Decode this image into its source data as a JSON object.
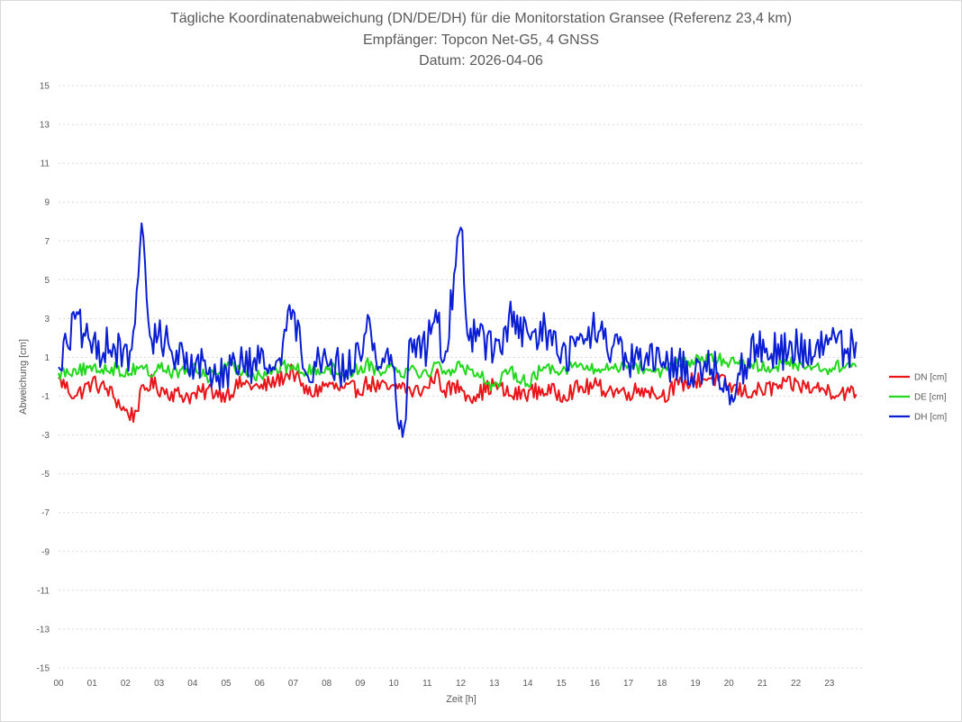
{
  "chart_data": {
    "type": "line",
    "title": "Tägliche Koordinatenabweichung (DN/DE/DH) für die Monitorstation Gransee (Referenz 23,4 km)",
    "subtitle": "Empfänger: Topcon Net-G5, 4 GNSS",
    "date_line": "Datum: 2026-04-06",
    "xlabel": "Zeit [h]",
    "ylabel": "Abweichung [cm]",
    "xlim": [
      0,
      24
    ],
    "ylim": [
      -15,
      15
    ],
    "xticks": [
      "00",
      "01",
      "02",
      "03",
      "04",
      "05",
      "06",
      "07",
      "08",
      "09",
      "10",
      "11",
      "12",
      "13",
      "14",
      "15",
      "16",
      "17",
      "18",
      "19",
      "20",
      "21",
      "22",
      "23"
    ],
    "yticks": [
      15,
      13,
      11,
      9,
      7,
      5,
      3,
      1,
      -1,
      -3,
      -5,
      -7,
      -9,
      -11,
      -13,
      -15
    ],
    "grid": "horizontal-dotted",
    "legend_position": "right",
    "x": [
      0.0,
      0.5,
      1.0,
      1.5,
      2.0,
      2.25,
      2.5,
      2.75,
      3.0,
      3.5,
      4.0,
      4.5,
      5.0,
      5.5,
      6.0,
      6.5,
      7.0,
      7.25,
      7.5,
      8.0,
      8.5,
      9.0,
      9.25,
      9.5,
      10.0,
      10.25,
      10.5,
      11.0,
      11.25,
      11.5,
      12.0,
      12.25,
      12.5,
      13.0,
      13.5,
      14.0,
      14.5,
      15.0,
      15.5,
      16.0,
      16.5,
      17.0,
      17.5,
      18.0,
      18.5,
      19.0,
      19.5,
      20.0,
      20.5,
      21.0,
      21.5,
      22.0,
      22.5,
      23.0,
      23.5,
      23.8
    ],
    "series": [
      {
        "name": "DN [cm]",
        "color": "#e8161a",
        "values": [
          -0.1,
          -1.0,
          -0.3,
          -0.7,
          -1.8,
          -2.0,
          -0.8,
          -0.3,
          -0.6,
          -0.9,
          -1.0,
          -0.7,
          -0.9,
          -0.3,
          -0.6,
          -0.2,
          0.3,
          -0.5,
          -0.9,
          -0.4,
          -0.7,
          -0.6,
          -0.3,
          -0.5,
          -0.7,
          -0.4,
          -0.8,
          -0.6,
          0.2,
          -0.7,
          -0.5,
          -1.0,
          -0.9,
          -0.4,
          -1.0,
          -0.8,
          -0.7,
          -0.9,
          -0.6,
          -0.5,
          -0.7,
          -0.8,
          -0.6,
          -1.0,
          -0.4,
          -0.2,
          0.0,
          -0.5,
          -0.8,
          -0.7,
          -0.5,
          -0.4,
          -0.6,
          -0.7,
          -0.8,
          -0.9
        ]
      },
      {
        "name": "DE [cm]",
        "color": "#22d81c",
        "values": [
          0.2,
          0.4,
          0.3,
          0.5,
          0.2,
          0.4,
          0.6,
          0.1,
          0.5,
          0.2,
          0.4,
          0.0,
          0.5,
          0.3,
          0.1,
          0.4,
          0.6,
          0.2,
          0.3,
          0.5,
          0.2,
          0.4,
          0.7,
          0.3,
          0.6,
          0.2,
          0.5,
          0.1,
          0.7,
          0.3,
          0.5,
          0.4,
          0.2,
          -0.5,
          0.3,
          -0.3,
          0.5,
          0.4,
          0.6,
          0.3,
          0.5,
          0.6,
          0.4,
          0.3,
          0.6,
          0.8,
          0.9,
          0.8,
          0.7,
          0.5,
          0.6,
          0.7,
          0.5,
          0.4,
          0.6,
          0.5
        ]
      },
      {
        "name": "DH [cm]",
        "color": "#0a1ed4",
        "values": [
          0.5,
          3.0,
          1.2,
          1.8,
          0.8,
          2.0,
          7.4,
          1.5,
          2.4,
          1.0,
          0.9,
          0.2,
          0.4,
          0.6,
          0.7,
          0.8,
          3.5,
          1.2,
          0.6,
          1.0,
          0.3,
          1.2,
          3.0,
          0.7,
          0.9,
          -3.9,
          2.0,
          1.5,
          3.5,
          0.8,
          7.7,
          1.8,
          2.5,
          1.2,
          3.0,
          1.8,
          2.5,
          1.0,
          1.6,
          2.4,
          1.5,
          0.7,
          0.9,
          0.5,
          0.8,
          0.2,
          0.6,
          -0.8,
          0.8,
          1.8,
          1.2,
          1.6,
          1.0,
          2.0,
          1.2,
          1.8
        ]
      }
    ]
  }
}
